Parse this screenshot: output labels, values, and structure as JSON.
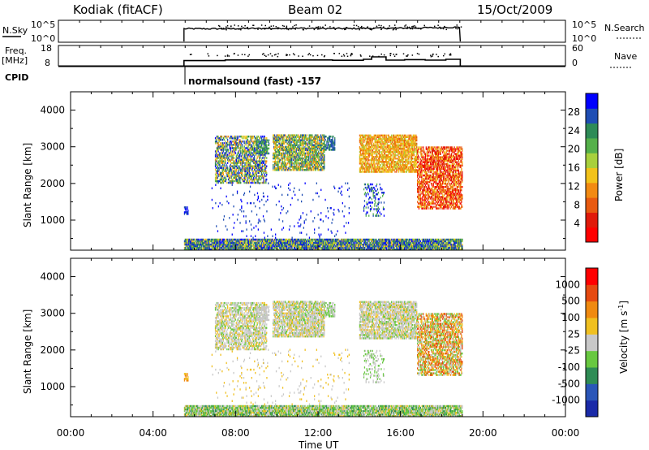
{
  "header": {
    "station": "Kodiak (fitACF)",
    "beam": "Beam 02",
    "date": "15/Oct/2009"
  },
  "top_panels": {
    "nsky_label": "N.Sky",
    "nsky_ticks": [
      "10^5",
      "10^0"
    ],
    "nsearch_label": "N.Search",
    "nsearch_ticks": [
      "10^5",
      "10^0"
    ],
    "freq_label": "Freq.",
    "freq_unit": "[MHz]",
    "freq_ticks": [
      "18",
      "8"
    ],
    "nave_label": "Nave",
    "nave_ticks": [
      "60",
      "0"
    ],
    "cpid_label": "CPID",
    "cpid_text": "normalsound (fast) -157"
  },
  "colors": {
    "power_scale": [
      "#0000ff",
      "#1f4eb4",
      "#2e8b57",
      "#55b04a",
      "#a8d03c",
      "#f2c21a",
      "#f28a12",
      "#e85a10",
      "#e01a0a",
      "#ff0000"
    ],
    "velocity_scale": [
      "#1a2aa8",
      "#2a56b8",
      "#2f8c55",
      "#68c840",
      "#c8c8c8",
      "#f0c020",
      "#f08a10",
      "#e64a10",
      "#ff0000"
    ]
  },
  "chart_data": [
    {
      "type": "heatmap",
      "name": "power",
      "xlabel": "Time UT",
      "ylabel": "Slant Range [km]",
      "xlim": [
        0,
        24
      ],
      "ylim": [
        180,
        4500
      ],
      "x_ticks": [
        "00:00",
        "04:00",
        "08:00",
        "12:00",
        "16:00",
        "20:00",
        "00:00"
      ],
      "y_ticks": [
        "1000",
        "2000",
        "3000",
        "4000"
      ],
      "colorbar_label": "Power [dB]",
      "colorbar_ticks": [
        "4",
        "8",
        "12",
        "16",
        "20",
        "24",
        "28"
      ],
      "data_time_range": [
        5.5,
        19.0
      ],
      "echo_regions": [
        {
          "t0": 5.5,
          "t1": 19.0,
          "r0": 200,
          "r1": 500,
          "level": "low-mixed"
        },
        {
          "t0": 7.0,
          "t1": 9.5,
          "r0": 2000,
          "r1": 3300,
          "level": "low-mid"
        },
        {
          "t0": 9.8,
          "t1": 12.3,
          "r0": 2400,
          "r1": 3300,
          "level": "mid"
        },
        {
          "t0": 14.2,
          "t1": 16.8,
          "r0": 2300,
          "r1": 3300,
          "level": "mid-high"
        },
        {
          "t0": 16.8,
          "t1": 19.0,
          "r0": 1300,
          "r1": 3000,
          "level": "high"
        }
      ]
    },
    {
      "type": "heatmap",
      "name": "velocity",
      "xlabel": "Time UT",
      "ylabel": "Slant Range [km]",
      "xlim": [
        0,
        24
      ],
      "ylim": [
        180,
        4500
      ],
      "x_ticks": [
        "00:00",
        "04:00",
        "08:00",
        "12:00",
        "16:00",
        "20:00",
        "00:00"
      ],
      "y_ticks": [
        "1000",
        "2000",
        "3000",
        "4000"
      ],
      "colorbar_label": "Velocity [m s",
      "colorbar_label_sup": "-1",
      "colorbar_label_end": "]",
      "colorbar_ticks": [
        "1000",
        "500",
        "100",
        "25",
        "-25",
        "-100",
        "-500",
        "-1000"
      ],
      "data_time_range": [
        5.5,
        19.0
      ]
    },
    {
      "type": "line",
      "name": "nsky",
      "x": [
        5.5,
        8,
        10,
        12,
        14,
        16,
        17,
        18,
        18.9
      ],
      "values": [
        3.2,
        3.3,
        3.4,
        3.3,
        3.4,
        3.5,
        3.6,
        3.8,
        4.0
      ]
    },
    {
      "type": "line",
      "name": "frequency",
      "x": [
        5.5,
        7.5,
        12.7,
        14.2,
        14.6,
        15.3,
        16.2,
        17.2,
        18.2,
        18.9
      ],
      "values": [
        11.2,
        11.6,
        11.4,
        12.0,
        13.5,
        11.5,
        11.8,
        11.5,
        12.0,
        12.3
      ]
    }
  ]
}
